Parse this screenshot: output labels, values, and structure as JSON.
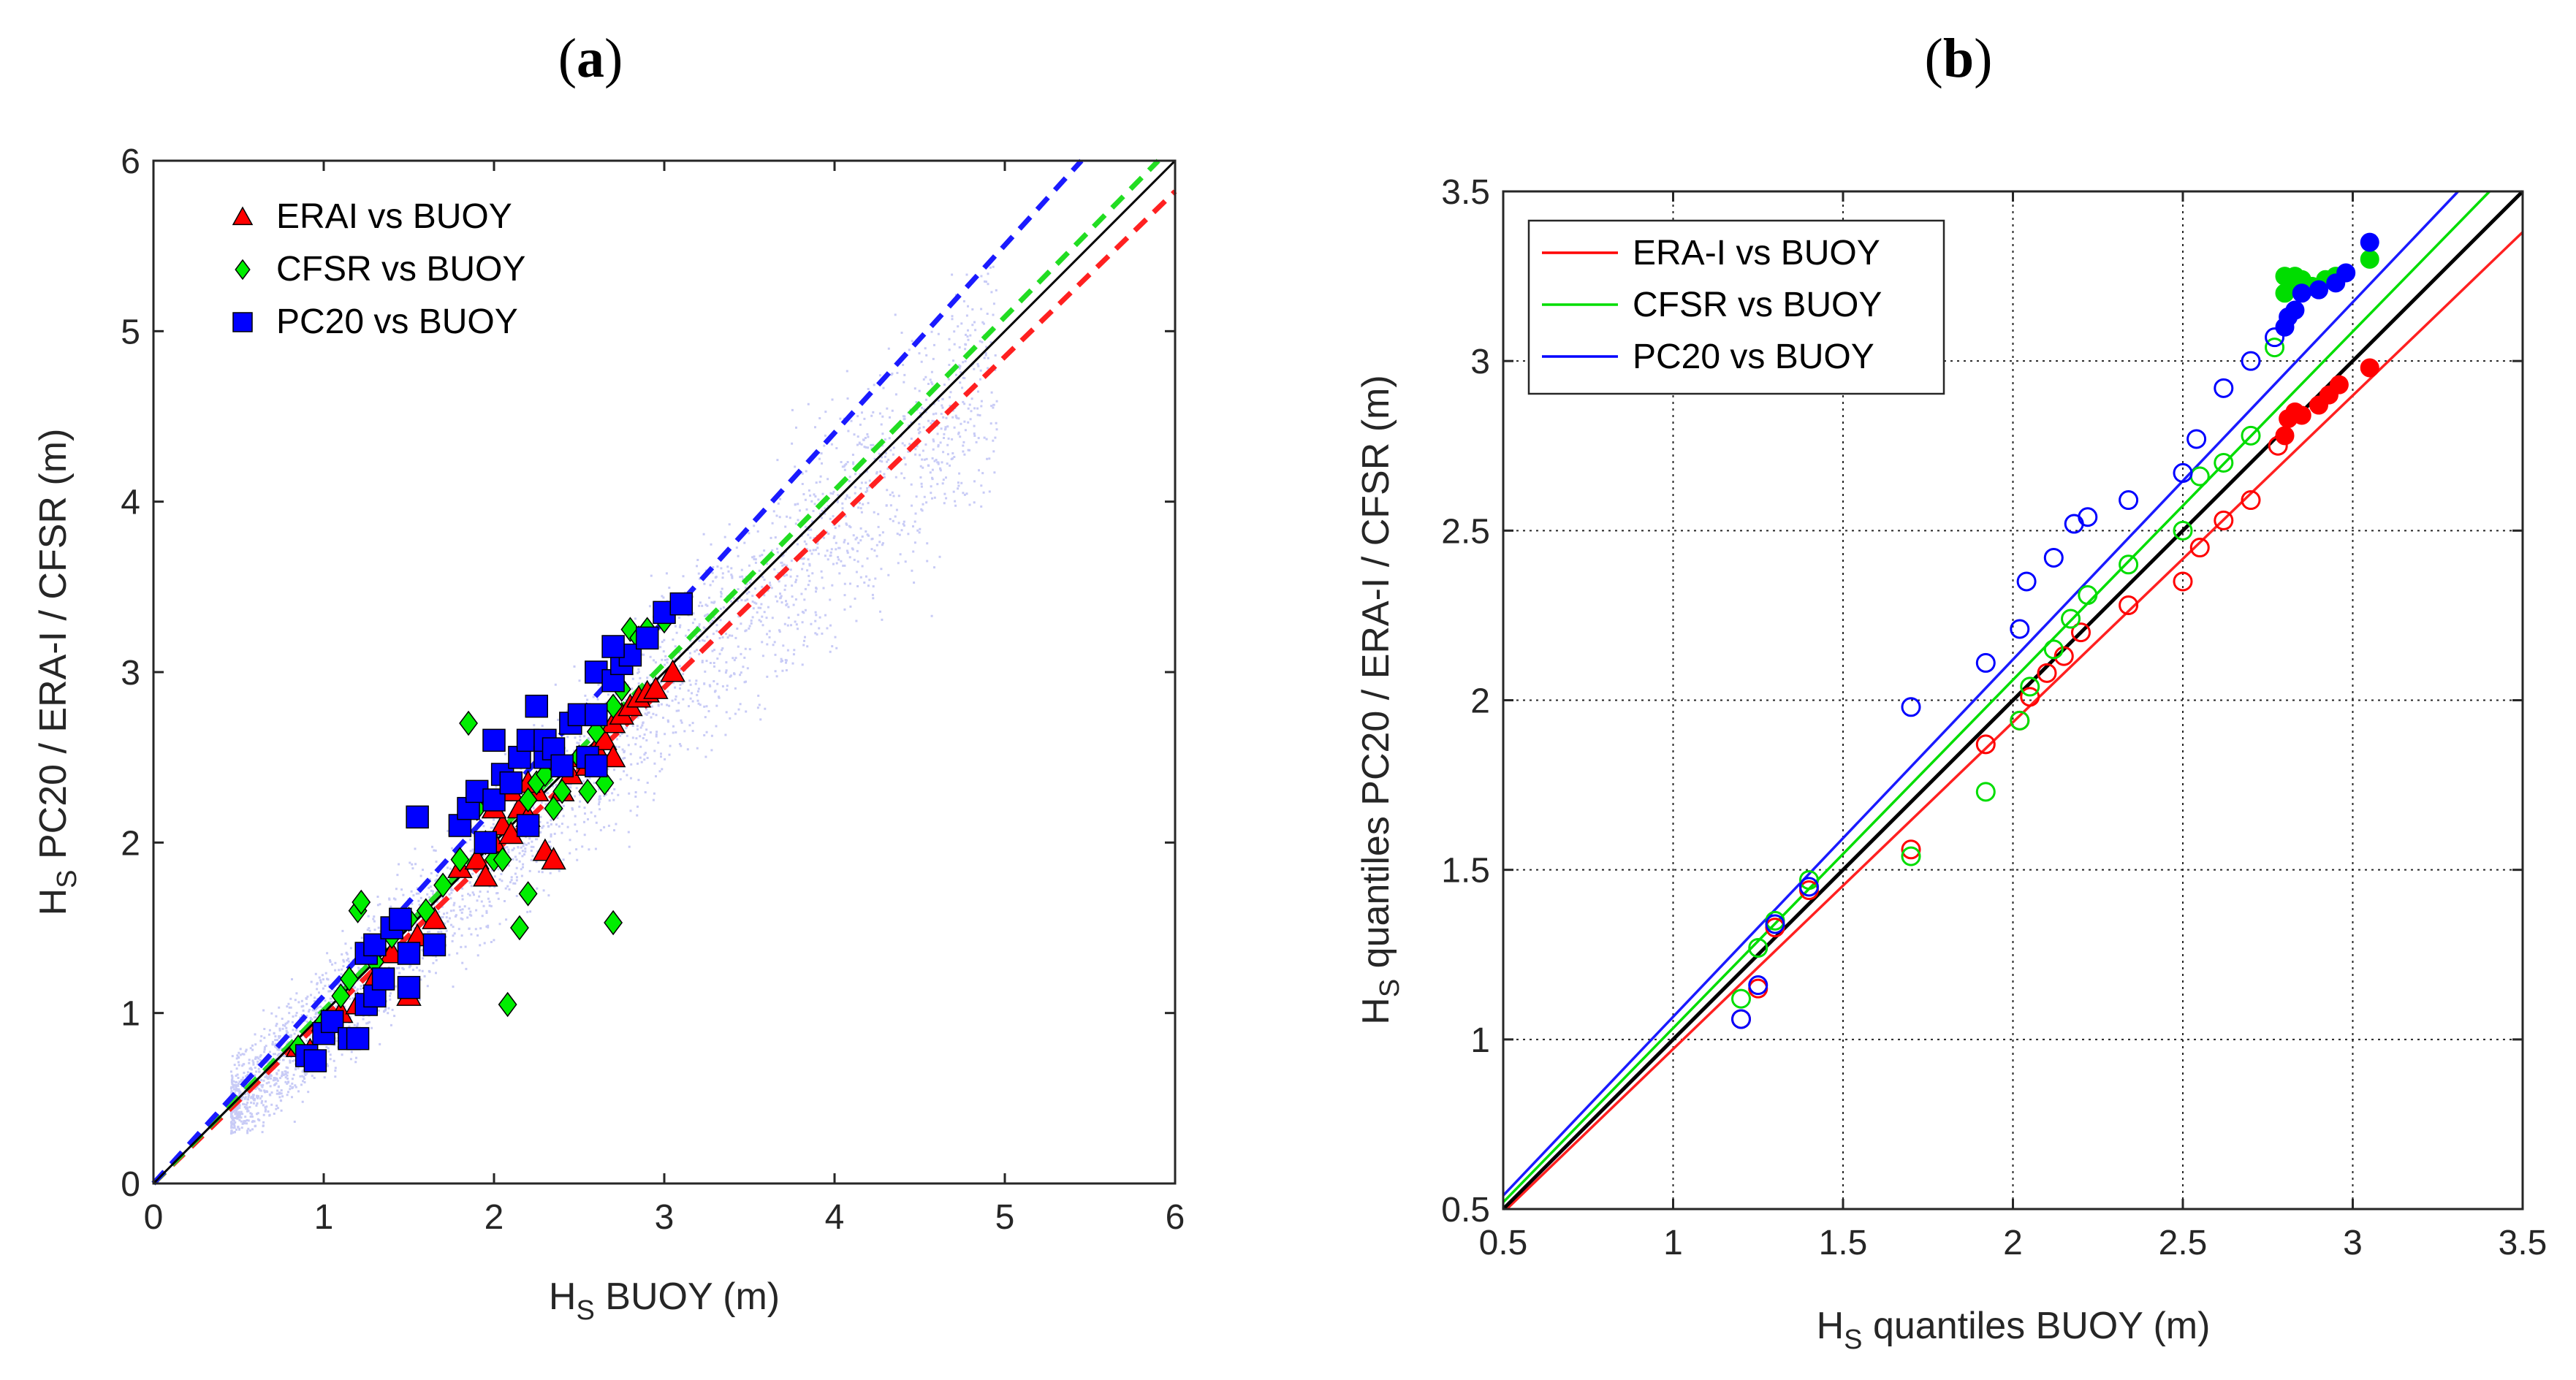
{
  "chart_data": [
    {
      "id": "a",
      "panel_label": "a",
      "type": "scatter",
      "xlabel": {
        "main": "H",
        "sub": "S",
        "rest": " BUOY (m)"
      },
      "ylabel": {
        "main": "H",
        "sub": "S",
        "rest": " PC20 / ERA-I / CFSR (m)"
      },
      "xlim": [
        0,
        6
      ],
      "ylim": [
        0,
        6
      ],
      "xticks": [
        "0",
        "1",
        "2",
        "3",
        "4",
        "5",
        "6"
      ],
      "yticks": [
        "0",
        "1",
        "2",
        "3",
        "4",
        "5",
        "6"
      ],
      "grid": false,
      "legend_position": "top-left",
      "legend": [
        {
          "label": "ERAI vs BUOY",
          "color": "#ff0000",
          "marker": "triangle"
        },
        {
          "label": "CFSR vs BUOY",
          "color": "#00ee00",
          "marker": "diamond"
        },
        {
          "label": "PC20 vs BUOY",
          "color": "#0000ff",
          "marker": "square"
        }
      ],
      "background_cloud": {
        "color": "#c8cbf6",
        "description": "dense point cloud of model vs buoy Hs"
      },
      "fit_lines": [
        {
          "name": "ERAI",
          "color": "#ff2020",
          "style": "dashed",
          "points": [
            [
              0,
              0
            ],
            [
              6,
              5.82
            ]
          ]
        },
        {
          "name": "CFSR",
          "color": "#22dd22",
          "style": "dashed",
          "points": [
            [
              0,
              0
            ],
            [
              6,
              6.1
            ]
          ]
        },
        {
          "name": "PC20",
          "color": "#1a1aff",
          "style": "dashed",
          "points": [
            [
              0,
              0
            ],
            [
              5.45,
              6.0
            ]
          ]
        },
        {
          "name": "1:1",
          "color": "#000000",
          "style": "solid",
          "points": [
            [
              0,
              0
            ],
            [
              6,
              6
            ]
          ]
        }
      ],
      "series": [
        {
          "name": "ERAI vs BUOY",
          "marker": "triangle",
          "color": "#ff0000",
          "points": [
            [
              0.85,
              0.8
            ],
            [
              0.92,
              0.78
            ],
            [
              1.0,
              0.95
            ],
            [
              1.1,
              1.0
            ],
            [
              1.2,
              1.05
            ],
            [
              1.3,
              1.2
            ],
            [
              1.4,
              1.35
            ],
            [
              1.5,
              1.1
            ],
            [
              1.55,
              1.45
            ],
            [
              1.65,
              1.55
            ],
            [
              1.8,
              1.85
            ],
            [
              1.9,
              1.9
            ],
            [
              2.0,
              2.0
            ],
            [
              2.05,
              2.1
            ],
            [
              2.1,
              2.05
            ],
            [
              2.15,
              2.2
            ],
            [
              2.2,
              2.15
            ],
            [
              2.25,
              2.3
            ],
            [
              2.3,
              1.95
            ],
            [
              2.35,
              1.9
            ],
            [
              2.4,
              2.3
            ],
            [
              2.45,
              2.4
            ],
            [
              2.5,
              2.5
            ],
            [
              2.55,
              2.45
            ],
            [
              2.6,
              2.55
            ],
            [
              2.65,
              2.6
            ],
            [
              2.7,
              2.7
            ],
            [
              2.75,
              2.75
            ],
            [
              2.8,
              2.8
            ],
            [
              2.85,
              2.85
            ],
            [
              2.9,
              2.88
            ],
            [
              2.95,
              2.9
            ],
            [
              3.05,
              3.0
            ],
            [
              2.2,
              2.35
            ],
            [
              2.0,
              2.2
            ],
            [
              1.95,
              1.8
            ],
            [
              2.1,
              2.3
            ],
            [
              2.7,
              2.5
            ]
          ]
        },
        {
          "name": "CFSR vs BUOY",
          "marker": "diamond",
          "color": "#00ee00",
          "points": [
            [
              0.85,
              0.8
            ],
            [
              1.0,
              0.95
            ],
            [
              1.15,
              1.2
            ],
            [
              1.2,
              1.6
            ],
            [
              1.22,
              1.65
            ],
            [
              1.3,
              1.3
            ],
            [
              1.4,
              1.45
            ],
            [
              1.5,
              1.55
            ],
            [
              1.6,
              1.6
            ],
            [
              1.7,
              1.75
            ],
            [
              1.85,
              2.7
            ],
            [
              1.9,
              2.2
            ],
            [
              1.95,
              2.0
            ],
            [
              2.0,
              1.9
            ],
            [
              2.05,
              1.9
            ],
            [
              2.08,
              1.05
            ],
            [
              2.15,
              1.5
            ],
            [
              2.2,
              1.7
            ],
            [
              2.25,
              2.35
            ],
            [
              2.3,
              2.4
            ],
            [
              2.35,
              2.2
            ],
            [
              2.4,
              2.3
            ],
            [
              2.5,
              2.5
            ],
            [
              2.55,
              2.3
            ],
            [
              2.6,
              2.65
            ],
            [
              2.65,
              2.35
            ],
            [
              2.7,
              1.53
            ],
            [
              2.7,
              2.8
            ],
            [
              2.75,
              2.9
            ],
            [
              2.8,
              3.25
            ],
            [
              2.85,
              3.2
            ],
            [
              2.9,
              3.25
            ],
            [
              3.0,
              3.3
            ],
            [
              2.2,
              2.25
            ],
            [
              1.8,
              1.9
            ],
            [
              1.1,
              1.1
            ]
          ]
        },
        {
          "name": "PC20 vs BUOY",
          "marker": "square",
          "color": "#0000ff",
          "points": [
            [
              0.9,
              0.75
            ],
            [
              0.95,
              0.72
            ],
            [
              1.0,
              0.88
            ],
            [
              1.05,
              0.95
            ],
            [
              1.15,
              0.85
            ],
            [
              1.2,
              0.85
            ],
            [
              1.25,
              1.05
            ],
            [
              1.3,
              1.1
            ],
            [
              1.25,
              1.35
            ],
            [
              1.3,
              1.4
            ],
            [
              1.35,
              1.2
            ],
            [
              1.4,
              1.5
            ],
            [
              1.45,
              1.55
            ],
            [
              1.5,
              1.15
            ],
            [
              1.5,
              1.35
            ],
            [
              1.55,
              2.15
            ],
            [
              1.65,
              1.4
            ],
            [
              1.8,
              2.1
            ],
            [
              1.85,
              2.2
            ],
            [
              1.9,
              2.3
            ],
            [
              2.0,
              2.25
            ],
            [
              2.05,
              2.4
            ],
            [
              2.1,
              2.35
            ],
            [
              2.15,
              2.5
            ],
            [
              2.2,
              2.6
            ],
            [
              2.25,
              2.8
            ],
            [
              2.3,
              2.5
            ],
            [
              2.3,
              2.6
            ],
            [
              2.35,
              2.55
            ],
            [
              2.4,
              2.45
            ],
            [
              2.45,
              2.7
            ],
            [
              2.5,
              2.75
            ],
            [
              2.55,
              2.5
            ],
            [
              2.6,
              2.45
            ],
            [
              2.6,
              3.0
            ],
            [
              2.7,
              2.95
            ],
            [
              2.75,
              3.05
            ],
            [
              2.8,
              3.1
            ],
            [
              2.9,
              3.2
            ],
            [
              3.0,
              3.35
            ],
            [
              3.1,
              3.4
            ],
            [
              2.2,
              2.1
            ],
            [
              1.95,
              2.0
            ],
            [
              2.6,
              2.75
            ],
            [
              2.7,
              3.15
            ],
            [
              2.0,
              2.6
            ]
          ]
        }
      ]
    },
    {
      "id": "b",
      "panel_label": "b",
      "type": "scatter",
      "xlabel": {
        "main": "H",
        "sub": "S",
        "rest": " quantiles BUOY (m)"
      },
      "ylabel": {
        "main": "H",
        "sub": "S",
        "rest": " quantiles PC20 / ERA-I / CFSR (m)"
      },
      "xlim": [
        0.5,
        3.5
      ],
      "ylim": [
        0.5,
        3.5
      ],
      "xticks": [
        "0.5",
        "1",
        "1.5",
        "2",
        "2.5",
        "3",
        "3.5"
      ],
      "yticks": [
        "0.5",
        "1",
        "1.5",
        "2",
        "2.5",
        "3",
        "3.5"
      ],
      "grid": true,
      "legend_position": "top-left",
      "legend": [
        {
          "label": "ERA-I vs BUOY",
          "color": "#ff0000"
        },
        {
          "label": "CFSR vs BUOY",
          "color": "#00dd00"
        },
        {
          "label": "PC20 vs BUOY",
          "color": "#0000ff"
        }
      ],
      "fit_lines": [
        {
          "name": "ERA-I",
          "color": "#ff2020",
          "style": "solid",
          "points": [
            [
              0.5,
              0.49
            ],
            [
              3.5,
              3.38
            ]
          ]
        },
        {
          "name": "CFSR",
          "color": "#00dd00",
          "style": "solid",
          "points": [
            [
              0.5,
              0.52
            ],
            [
              3.5,
              3.6
            ]
          ]
        },
        {
          "name": "PC20",
          "color": "#1a1aff",
          "style": "solid",
          "points": [
            [
              0.5,
              0.54
            ],
            [
              3.5,
              3.7
            ]
          ]
        },
        {
          "name": "1:1",
          "color": "#000000",
          "style": "solid",
          "points": [
            [
              0.5,
              0.5
            ],
            [
              3.5,
              3.5
            ]
          ]
        }
      ],
      "series": [
        {
          "name": "ERA-I vs BUOY",
          "color": "#ff0000",
          "open": [
            [
              1.2,
              1.06
            ],
            [
              1.25,
              1.15
            ],
            [
              1.3,
              1.33
            ],
            [
              1.4,
              1.44
            ],
            [
              1.7,
              1.56
            ],
            [
              1.92,
              1.87
            ],
            [
              2.02,
              1.94
            ],
            [
              2.05,
              2.01
            ],
            [
              2.1,
              2.08
            ],
            [
              2.15,
              2.13
            ],
            [
              2.2,
              2.2
            ],
            [
              2.34,
              2.28
            ],
            [
              2.5,
              2.35
            ],
            [
              2.55,
              2.45
            ],
            [
              2.62,
              2.53
            ],
            [
              2.7,
              2.59
            ],
            [
              2.78,
              2.75
            ]
          ],
          "filled": [
            [
              2.8,
              2.78
            ],
            [
              2.81,
              2.83
            ],
            [
              2.83,
              2.85
            ],
            [
              2.85,
              2.84
            ],
            [
              2.9,
              2.87
            ],
            [
              2.93,
              2.9
            ],
            [
              2.96,
              2.93
            ],
            [
              3.05,
              2.98
            ]
          ]
        },
        {
          "name": "CFSR vs BUOY",
          "color": "#00dd00",
          "open": [
            [
              1.2,
              1.12
            ],
            [
              1.25,
              1.27
            ],
            [
              1.3,
              1.35
            ],
            [
              1.4,
              1.47
            ],
            [
              1.7,
              1.54
            ],
            [
              1.92,
              1.73
            ],
            [
              2.02,
              1.94
            ],
            [
              2.05,
              2.04
            ],
            [
              2.12,
              2.15
            ],
            [
              2.17,
              2.24
            ],
            [
              2.22,
              2.31
            ],
            [
              2.34,
              2.4
            ],
            [
              2.5,
              2.5
            ],
            [
              2.55,
              2.66
            ],
            [
              2.62,
              2.7
            ],
            [
              2.7,
              2.78
            ],
            [
              2.77,
              3.04
            ]
          ],
          "filled": [
            [
              2.8,
              3.2
            ],
            [
              2.82,
              3.23
            ],
            [
              2.85,
              3.24
            ],
            [
              2.88,
              3.22
            ],
            [
              2.92,
              3.24
            ],
            [
              2.95,
              3.25
            ],
            [
              3.05,
              3.3
            ],
            [
              2.8,
              3.25
            ],
            [
              2.83,
              3.25
            ]
          ]
        },
        {
          "name": "PC20 vs BUOY",
          "color": "#0000ff",
          "open": [
            [
              1.2,
              1.06
            ],
            [
              1.25,
              1.16
            ],
            [
              1.3,
              1.34
            ],
            [
              1.4,
              1.45
            ],
            [
              1.7,
              1.98
            ],
            [
              1.92,
              2.11
            ],
            [
              2.02,
              2.21
            ],
            [
              2.04,
              2.35
            ],
            [
              2.12,
              2.42
            ],
            [
              2.18,
              2.52
            ],
            [
              2.22,
              2.54
            ],
            [
              2.34,
              2.59
            ],
            [
              2.5,
              2.67
            ],
            [
              2.54,
              2.77
            ],
            [
              2.62,
              2.92
            ],
            [
              2.7,
              3.0
            ],
            [
              2.77,
              3.07
            ]
          ],
          "filled": [
            [
              2.8,
              3.1
            ],
            [
              2.81,
              3.13
            ],
            [
              2.83,
              3.15
            ],
            [
              2.85,
              3.2
            ],
            [
              2.9,
              3.21
            ],
            [
              2.95,
              3.23
            ],
            [
              2.98,
              3.26
            ],
            [
              3.05,
              3.35
            ]
          ]
        }
      ]
    }
  ]
}
